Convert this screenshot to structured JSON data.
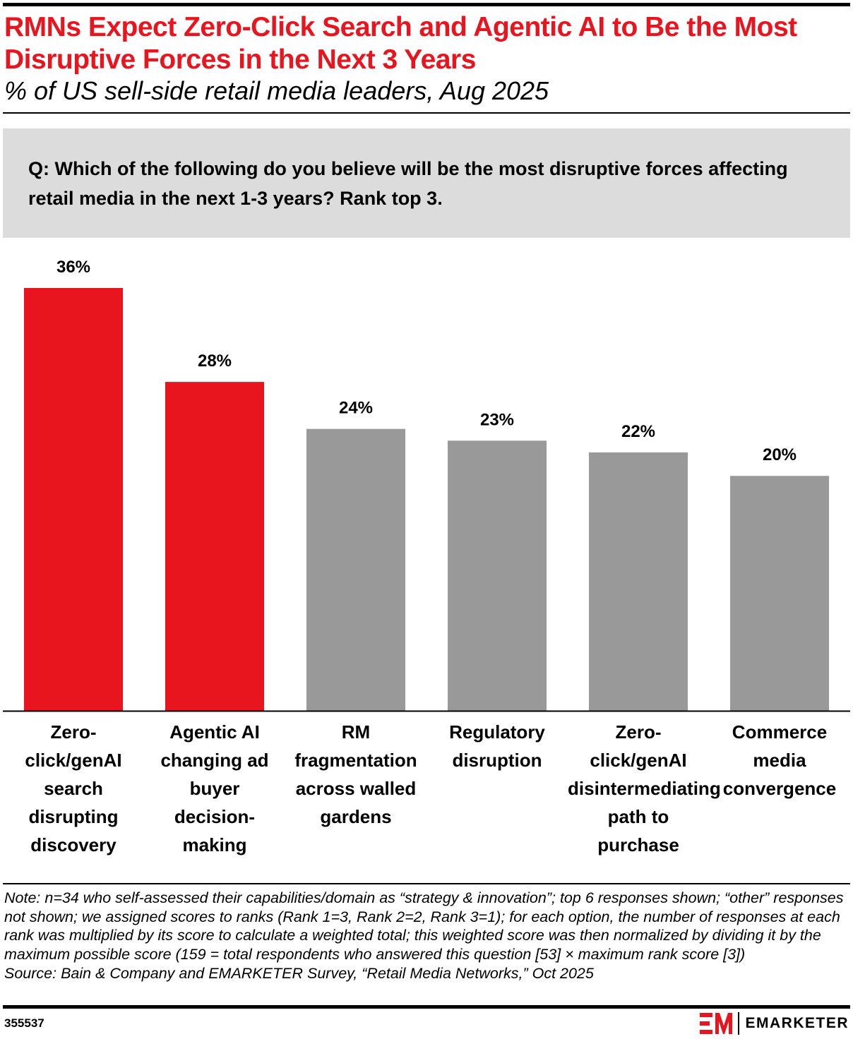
{
  "header": {
    "title": "RMNs Expect Zero-Click Search and Agentic AI to Be the Most Disruptive Forces in the Next 3 Years",
    "subtitle": "% of US sell-side retail media leaders, Aug 2025"
  },
  "question": "Q: Which of the following do you believe will be the most disruptive forces affecting retail media in the next 1-3 years? Rank top 3.",
  "chart_data": {
    "type": "bar",
    "categories": [
      "Zero-click/genAI search disrupting discovery",
      "Agentic AI changing ad buyer decision-making",
      "RM fragmentation across walled gardens",
      "Regulatory disruption",
      "Zero-click/genAI disintermediating path to purchase",
      "Commerce media convergence"
    ],
    "values": [
      36,
      28,
      24,
      23,
      22,
      20
    ],
    "data_labels": [
      "36%",
      "28%",
      "24%",
      "23%",
      "22%",
      "20%"
    ],
    "colors": [
      "#e8141e",
      "#e8141e",
      "#999999",
      "#999999",
      "#999999",
      "#999999"
    ],
    "ylim": [
      0,
      36
    ],
    "grid": false,
    "unit": "%"
  },
  "footer": {
    "note": "Note: n=34 who self-assessed their capabilities/domain as “strategy & innovation”; top 6 responses shown; “other” responses not shown; we assigned scores to ranks (Rank 1=3, Rank 2=2, Rank 3=1); for each option, the number of responses at each rank was multiplied by its score to calculate a weighted total; this weighted score was then normalized by dividing it by the maximum possible score (159 = total respondents who answered this question [53] × maximum rank score [3])",
    "source": "Source: Bain & Company and EMARKETER Survey, “Retail Media Networks,” Oct 2025",
    "chart_id": "355537",
    "logo_text": "EMARKETER",
    "brand_color": "#e8141e"
  }
}
